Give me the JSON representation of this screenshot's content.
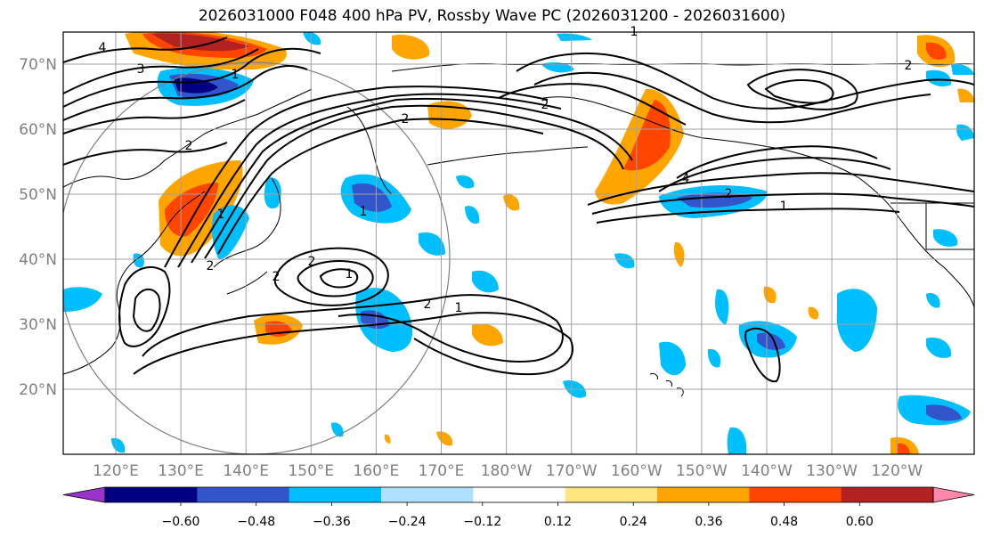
{
  "title": "2026031000 F048 400 hPa PV, Rossby Wave PC (2026031200 - 2026031600)",
  "chart_data": {
    "type": "map-contour",
    "title": "2026031000 F048 400 hPa PV, Rossby Wave PC (2026031200 - 2026031600)",
    "x_ticks": [
      "120°E",
      "130°E",
      "140°E",
      "150°E",
      "160°E",
      "170°E",
      "180°W",
      "170°W",
      "160°W",
      "150°W",
      "140°W",
      "130°W",
      "120°W"
    ],
    "y_ticks": [
      "20°N",
      "30°N",
      "40°N",
      "50°N",
      "60°N",
      "70°N"
    ],
    "colorbar": {
      "ticks": [
        "−0.60",
        "−0.48",
        "−0.36",
        "−0.24",
        "−0.12",
        "0.12",
        "0.24",
        "0.36",
        "0.48",
        "0.60"
      ],
      "colors": [
        "#9933cc",
        "#000080",
        "#3355cc",
        "#00bfff",
        "#b0e0ff",
        "#ffffff",
        "#ffe680",
        "#ffa500",
        "#ff4500",
        "#b22222",
        "#ff88aa"
      ]
    },
    "contour_labels": [
      "4",
      "3",
      "2",
      "1",
      "1",
      "2",
      "1",
      "2",
      "4",
      "2",
      "1",
      "2",
      "1",
      "2",
      "2",
      "1",
      "2",
      "1",
      "2"
    ],
    "colors": {
      "grid": "#a0a0a0",
      "tick": "#808080",
      "contour": "#000000"
    }
  }
}
